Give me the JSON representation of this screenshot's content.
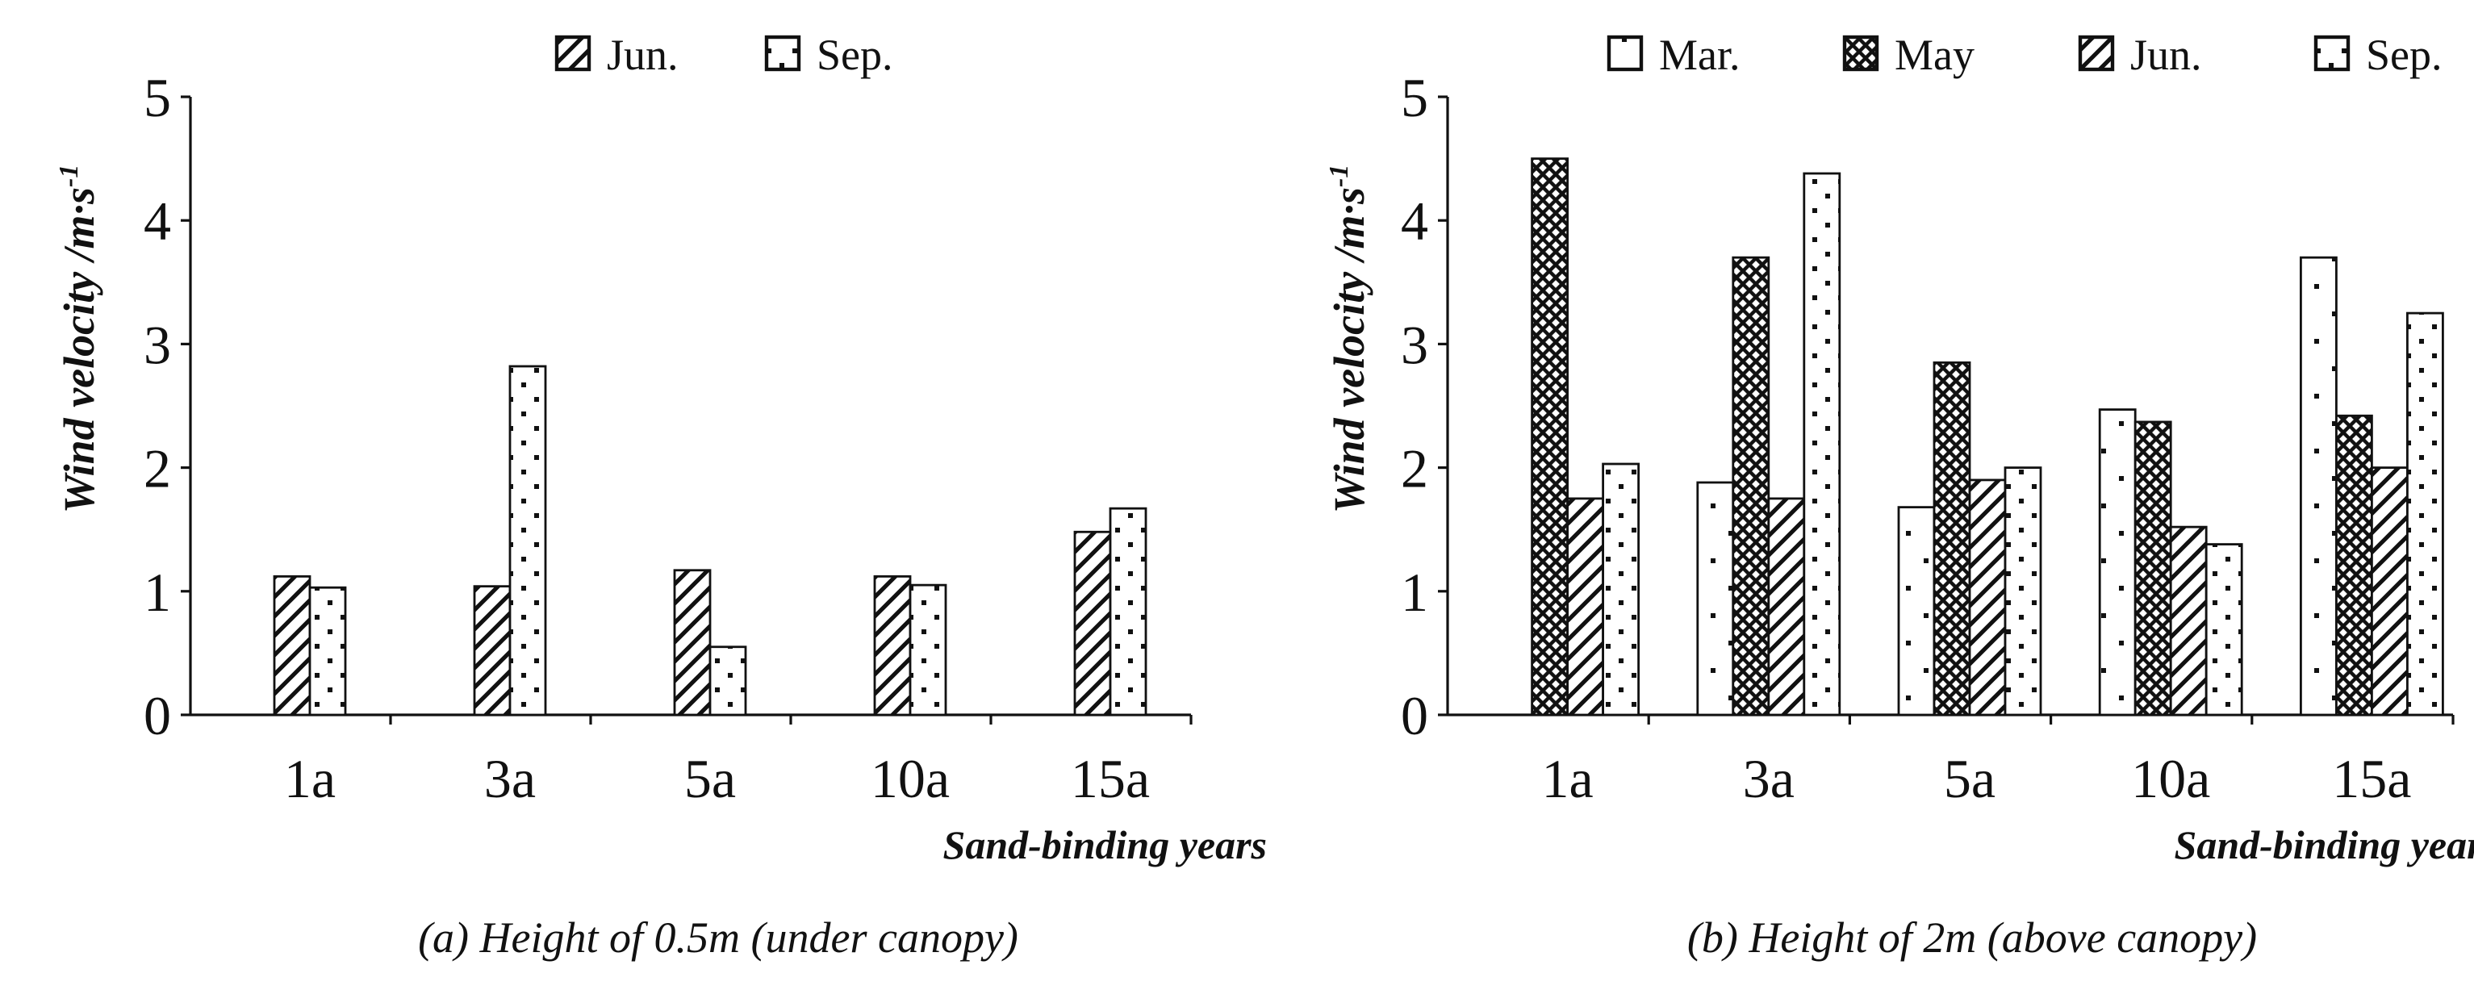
{
  "figure_captions": [
    "(a) Height of 0.5m (under canopy)",
    "(b) Height of 2m (above canopy)"
  ],
  "chart_data": [
    {
      "type": "bar",
      "title": "(a) Height of 0.5m (under canopy)",
      "xlabel": "Sand-binding years",
      "ylabel": "Wind velocity /m·s",
      "ylabel_superscript": "-1",
      "categories": [
        "1a",
        "3a",
        "5a",
        "10a",
        "15a"
      ],
      "ylim": [
        0,
        5
      ],
      "yticks": [
        0,
        1,
        2,
        3,
        4,
        5
      ],
      "grid": false,
      "legend_position": "top",
      "series": [
        {
          "name": "Jun.",
          "pattern": "diagonal",
          "values": [
            1.12,
            1.04,
            1.17,
            1.12,
            1.48
          ]
        },
        {
          "name": "Sep.",
          "pattern": "dots",
          "values": [
            1.03,
            2.82,
            0.55,
            1.05,
            1.67
          ]
        }
      ]
    },
    {
      "type": "bar",
      "title": "(b) Height of 2m (above canopy)",
      "xlabel": "Sand-binding years",
      "ylabel": "Wind velocity /m·s",
      "ylabel_superscript": "-1",
      "categories": [
        "1a",
        "3a",
        "5a",
        "10a",
        "15a"
      ],
      "ylim": [
        0,
        5
      ],
      "yticks": [
        0,
        1,
        2,
        3,
        4,
        5
      ],
      "grid": false,
      "legend_position": "top",
      "series": [
        {
          "name": "Mar.",
          "pattern": "sparse-dots",
          "values": [
            0,
            1.88,
            1.68,
            2.47,
            3.7
          ]
        },
        {
          "name": "May",
          "pattern": "crosshatch",
          "values": [
            4.5,
            3.7,
            2.85,
            2.37,
            2.42
          ]
        },
        {
          "name": "Jun.",
          "pattern": "diagonal",
          "values": [
            1.75,
            1.75,
            1.9,
            1.52,
            2.0
          ]
        },
        {
          "name": "Sep.",
          "pattern": "dots",
          "values": [
            2.03,
            4.38,
            2.0,
            1.38,
            3.25
          ]
        }
      ]
    }
  ]
}
